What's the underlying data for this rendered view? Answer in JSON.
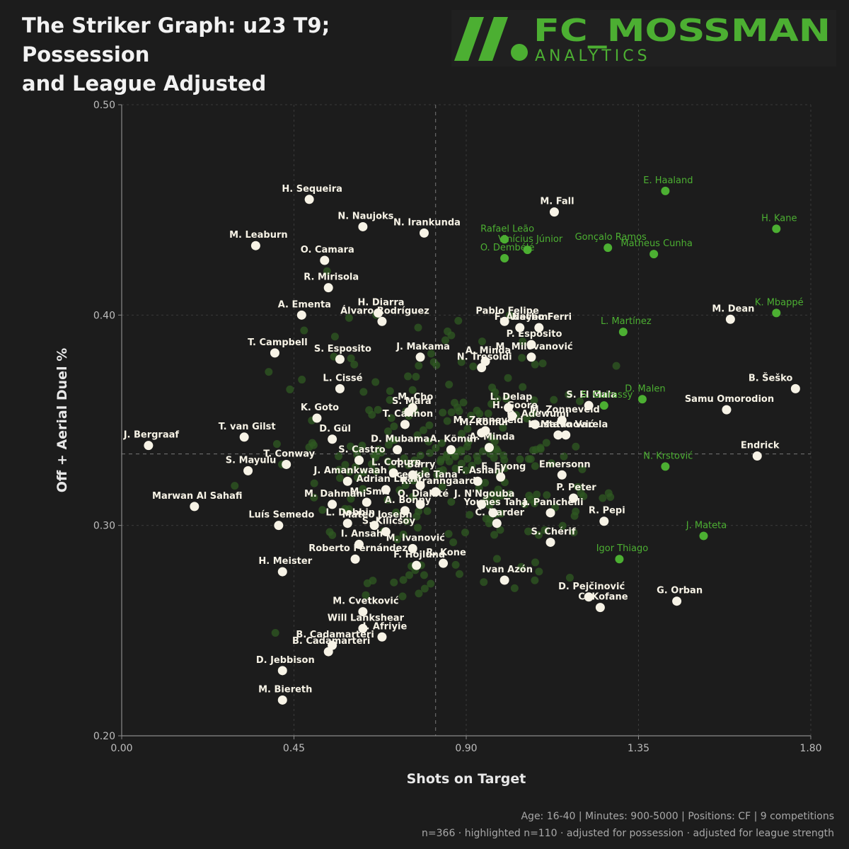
{
  "header": {
    "title_line1": "The Striker Graph: u23 T9; Possession",
    "title_line2": "and League Adjusted"
  },
  "logo": {
    "name": "FC_MOSSMAN",
    "sub": "ANALYTICS",
    "color": "#4caf32"
  },
  "footer": {
    "line1": "Age: 16-40 | Minutes: 900-5000 | Positions: CF | 9 competitions",
    "line2": "n=366 · highlighted n=110 · adjusted for possession · adjusted for league strength"
  },
  "colors": {
    "background": "#1c1c1c",
    "highlight": "#4caf32",
    "labelled_point": "#f7f3e6",
    "background_point": "#2f5a22",
    "grid": "#3a3a3a",
    "text": "#e8e8e8"
  },
  "chart_data": {
    "type": "scatter",
    "title": "",
    "xlabel": "Shots on Target",
    "ylabel": "Off + Aerial Duel %",
    "xlim": [
      0,
      1.8
    ],
    "ylim": [
      0.2,
      0.5
    ],
    "xticks": [
      "0.00",
      "0.45",
      "0.90",
      "1.35",
      "1.80"
    ],
    "xtick_values": [
      0,
      0.45,
      0.9,
      1.35,
      1.8
    ],
    "yticks": [
      "0.20",
      "0.30",
      "0.40",
      "0.50"
    ],
    "ytick_values": [
      0.2,
      0.3,
      0.4,
      0.5
    ],
    "grid": true,
    "reference_lines": {
      "x": 0.82,
      "y": 0.334
    },
    "series": [
      {
        "points": [
          {
            "x": 1.42,
            "y": 0.459,
            "label": "E. Haaland"
          },
          {
            "x": 1.71,
            "y": 0.441,
            "label": "H. Kane"
          },
          {
            "x": 1.0,
            "y": 0.436,
            "label": "Rafael Leão"
          },
          {
            "x": 1.06,
            "y": 0.431,
            "label": "Vinícius Júnior"
          },
          {
            "x": 1.27,
            "y": 0.432,
            "label": "Gonçalo Ramos"
          },
          {
            "x": 1.0,
            "y": 0.427,
            "label": "O. Dembélé"
          },
          {
            "x": 1.39,
            "y": 0.429,
            "label": "Matheus Cunha"
          },
          {
            "x": 1.71,
            "y": 0.401,
            "label": "K. Mbappé"
          },
          {
            "x": 1.31,
            "y": 0.392,
            "label": "L. Martínez"
          },
          {
            "x": 1.36,
            "y": 0.36,
            "label": "D. Malen"
          },
          {
            "x": 1.26,
            "y": 0.357,
            "label": "S. Guirassy"
          },
          {
            "x": 1.42,
            "y": 0.328,
            "label": "N. Krstović"
          },
          {
            "x": 1.52,
            "y": 0.295,
            "label": "J. Mateta"
          },
          {
            "x": 1.3,
            "y": 0.284,
            "label": "Igor Thiago"
          }
        ]
      },
      {
        "points": [
          {
            "x": 0.49,
            "y": 0.455,
            "label": "H. Sequeira"
          },
          {
            "x": 0.63,
            "y": 0.442,
            "label": "N. Naujoks"
          },
          {
            "x": 0.79,
            "y": 0.439,
            "label": "N. Irankunda"
          },
          {
            "x": 0.35,
            "y": 0.433,
            "label": "M. Leaburn"
          },
          {
            "x": 1.13,
            "y": 0.449,
            "label": "M. Fall"
          },
          {
            "x": 0.53,
            "y": 0.426,
            "label": "O. Camara"
          },
          {
            "x": 0.54,
            "y": 0.413,
            "label": "R. Mirisola"
          },
          {
            "x": 0.47,
            "y": 0.4,
            "label": "A. Ementa"
          },
          {
            "x": 0.67,
            "y": 0.401,
            "label": "H. Diarra"
          },
          {
            "x": 0.68,
            "y": 0.397,
            "label": "Álvaro Rodríguez"
          },
          {
            "x": 1.0,
            "y": 0.397,
            "label": "Pablo Felipe"
          },
          {
            "x": 1.04,
            "y": 0.394,
            "label": "F. Adeyemi"
          },
          {
            "x": 1.09,
            "y": 0.394,
            "label": "Nacho Ferri"
          },
          {
            "x": 1.07,
            "y": 0.386,
            "label": "P. Esposito"
          },
          {
            "x": 1.07,
            "y": 0.38,
            "label": "M. Milovanović"
          },
          {
            "x": 1.59,
            "y": 0.398,
            "label": "M. Dean"
          },
          {
            "x": 0.4,
            "y": 0.382,
            "label": "T. Campbell"
          },
          {
            "x": 0.57,
            "y": 0.379,
            "label": "S. Esposito"
          },
          {
            "x": 0.78,
            "y": 0.38,
            "label": "J. Makama"
          },
          {
            "x": 0.95,
            "y": 0.378,
            "label": "A. Minda"
          },
          {
            "x": 0.94,
            "y": 0.375,
            "label": "N. Tresoldi"
          },
          {
            "x": 1.76,
            "y": 0.365,
            "label": "B. Šeško"
          },
          {
            "x": 0.57,
            "y": 0.365,
            "label": "L. Cissé"
          },
          {
            "x": 0.76,
            "y": 0.356,
            "label": "M. Cho"
          },
          {
            "x": 0.75,
            "y": 0.354,
            "label": "S. Mara"
          },
          {
            "x": 1.01,
            "y": 0.356,
            "label": "L. Delap"
          },
          {
            "x": 1.02,
            "y": 0.352,
            "label": "H. Goore"
          },
          {
            "x": 1.22,
            "y": 0.357,
            "label": "S. El Mala"
          },
          {
            "x": 1.58,
            "y": 0.355,
            "label": "Samu Omorodion"
          },
          {
            "x": 0.51,
            "y": 0.351,
            "label": "K. Goto"
          },
          {
            "x": 0.74,
            "y": 0.348,
            "label": "T. Cannon"
          },
          {
            "x": 1.08,
            "y": 0.348,
            "label": "O. Adewumi"
          },
          {
            "x": 1.15,
            "y": 0.35,
            "label": "M. Zonneveld"
          },
          {
            "x": 1.16,
            "y": 0.343,
            "label": "Gustavo Varela"
          },
          {
            "x": 0.95,
            "y": 0.345,
            "label": "M. Zonneveld"
          },
          {
            "x": 0.32,
            "y": 0.342,
            "label": "T. van Gilst"
          },
          {
            "x": 0.55,
            "y": 0.341,
            "label": "D. Gül"
          },
          {
            "x": 0.94,
            "y": 0.344,
            "label": "M. Kömür"
          },
          {
            "x": 1.14,
            "y": 0.343,
            "label": "L. Matanović"
          },
          {
            "x": 0.07,
            "y": 0.338,
            "label": "J. Bergraaf"
          },
          {
            "x": 0.72,
            "y": 0.336,
            "label": "D. Mubama"
          },
          {
            "x": 0.86,
            "y": 0.336,
            "label": "A. Kömür"
          },
          {
            "x": 0.96,
            "y": 0.337,
            "label": "A. Minda"
          },
          {
            "x": 1.66,
            "y": 0.333,
            "label": "Endrick"
          },
          {
            "x": 0.43,
            "y": 0.329,
            "label": "T. Conway"
          },
          {
            "x": 0.33,
            "y": 0.326,
            "label": "S. Mayulu"
          },
          {
            "x": 0.62,
            "y": 0.331,
            "label": "S. Castro"
          },
          {
            "x": 0.71,
            "y": 0.325,
            "label": "L. Coburn"
          },
          {
            "x": 0.76,
            "y": 0.324,
            "label": "T. Barry"
          },
          {
            "x": 0.99,
            "y": 0.323,
            "label": "E. Eyong"
          },
          {
            "x": 1.15,
            "y": 0.324,
            "label": "Emersonn"
          },
          {
            "x": 0.59,
            "y": 0.321,
            "label": "J. Amankwaah"
          },
          {
            "x": 0.78,
            "y": 0.319,
            "label": "Ocenkie Tana"
          },
          {
            "x": 0.93,
            "y": 0.321,
            "label": "F. Asllani"
          },
          {
            "x": 0.69,
            "y": 0.317,
            "label": "Adrian Lirari"
          },
          {
            "x": 0.82,
            "y": 0.316,
            "label": "R. Vranngaard"
          },
          {
            "x": 1.18,
            "y": 0.313,
            "label": "P. Peter"
          },
          {
            "x": 0.19,
            "y": 0.309,
            "label": "Marwan Al Sahafi"
          },
          {
            "x": 0.55,
            "y": 0.31,
            "label": "M. Dahmani"
          },
          {
            "x": 0.64,
            "y": 0.311,
            "label": "M. Smit"
          },
          {
            "x": 0.78,
            "y": 0.31,
            "label": "O. Diakité"
          },
          {
            "x": 0.94,
            "y": 0.31,
            "label": "J. N'Ngouba"
          },
          {
            "x": 0.97,
            "y": 0.306,
            "label": "Younes Taha"
          },
          {
            "x": 1.12,
            "y": 0.306,
            "label": "J. Panichelli"
          },
          {
            "x": 0.41,
            "y": 0.3,
            "label": "Luís Semedo"
          },
          {
            "x": 0.59,
            "y": 0.301,
            "label": "L. Dobbin"
          },
          {
            "x": 0.74,
            "y": 0.307,
            "label": "A. Bonny"
          },
          {
            "x": 0.98,
            "y": 0.301,
            "label": "C. Harder"
          },
          {
            "x": 1.26,
            "y": 0.302,
            "label": "R. Pepi"
          },
          {
            "x": 0.66,
            "y": 0.3,
            "label": "Mateo Joseph"
          },
          {
            "x": 0.69,
            "y": 0.297,
            "label": "S. Kilicsoy"
          },
          {
            "x": 1.12,
            "y": 0.292,
            "label": "S. Chérif"
          },
          {
            "x": 0.62,
            "y": 0.291,
            "label": "I. Ansah"
          },
          {
            "x": 0.76,
            "y": 0.289,
            "label": "M. Ivanović"
          },
          {
            "x": 0.42,
            "y": 0.278,
            "label": "H. Meister"
          },
          {
            "x": 0.61,
            "y": 0.284,
            "label": "Roberto Fernández"
          },
          {
            "x": 0.77,
            "y": 0.281,
            "label": "F. Hojlund"
          },
          {
            "x": 0.84,
            "y": 0.282,
            "label": "R. Kone"
          },
          {
            "x": 1.0,
            "y": 0.274,
            "label": "Ivan Azón"
          },
          {
            "x": 1.22,
            "y": 0.266,
            "label": "D. Pejčinović"
          },
          {
            "x": 1.25,
            "y": 0.261,
            "label": "C. Kofane"
          },
          {
            "x": 1.45,
            "y": 0.264,
            "label": "G. Orban"
          },
          {
            "x": 0.63,
            "y": 0.259,
            "label": "M. Cvetković"
          },
          {
            "x": 0.63,
            "y": 0.251,
            "label": "Will Lankshear"
          },
          {
            "x": 0.68,
            "y": 0.247,
            "label": "J. Afriyie"
          },
          {
            "x": 0.55,
            "y": 0.243,
            "label": "B. Cadamarteri"
          },
          {
            "x": 0.54,
            "y": 0.24,
            "label": "B. Cadamarteri"
          },
          {
            "x": 0.42,
            "y": 0.231,
            "label": "D. Jebbison"
          },
          {
            "x": 0.42,
            "y": 0.217,
            "label": "M. Biereth"
          }
        ]
      }
    ]
  }
}
